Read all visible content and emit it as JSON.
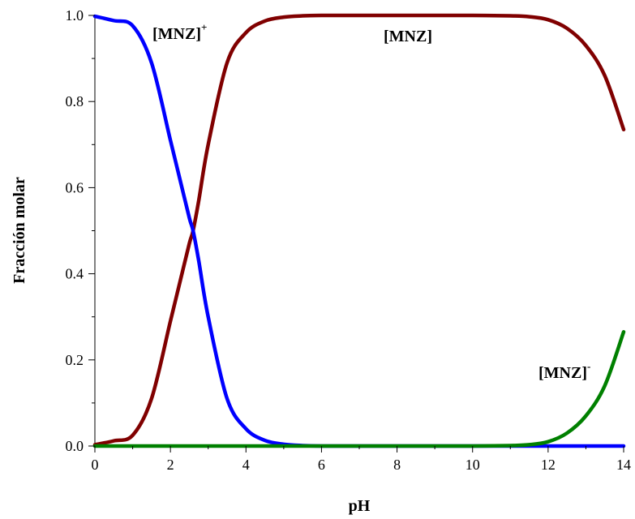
{
  "chart_data": {
    "type": "line",
    "xlabel": "pH",
    "ylabel": "Fracción molar",
    "xlim": [
      0,
      14
    ],
    "ylim": [
      0,
      1.0
    ],
    "x_ticks": [
      "0",
      "2",
      "4",
      "6",
      "8",
      "10",
      "12",
      "14"
    ],
    "y_ticks": [
      "0.0",
      "0.2",
      "0.4",
      "0.6",
      "0.8",
      "1.0"
    ],
    "grid": false,
    "legend": "none",
    "annotations": [
      {
        "base": "[MNZ]",
        "sup": "+",
        "series": "cation"
      },
      {
        "base": "[MNZ]",
        "sup": "",
        "series": "neutral"
      },
      {
        "base": "[MNZ]",
        "sup": "-",
        "series": "anion"
      }
    ],
    "x": [
      0,
      0.5,
      1,
      1.5,
      2,
      2.25,
      2.5,
      2.6,
      2.75,
      3,
      3.5,
      4,
      4.5,
      5,
      5.5,
      6,
      7,
      8,
      9,
      10,
      11,
      11.5,
      12,
      12.5,
      13,
      13.5,
      14
    ],
    "series": [
      {
        "id": "cation",
        "color": "#0000ff",
        "values": [
          0.998,
          0.988,
          0.976,
          0.89,
          0.71,
          0.62,
          0.53,
          0.5,
          0.43,
          0.3,
          0.11,
          0.04,
          0.013,
          0.004,
          0.001,
          0.0,
          0.0,
          0.0,
          0.0,
          0.0,
          0.0,
          0.0,
          0.0,
          0.0,
          0.0,
          0.0,
          0.0
        ]
      },
      {
        "id": "neutral",
        "color": "#800000",
        "values": [
          0.003,
          0.012,
          0.025,
          0.11,
          0.29,
          0.38,
          0.47,
          0.5,
          0.57,
          0.7,
          0.89,
          0.96,
          0.987,
          0.996,
          0.999,
          1.0,
          1.0,
          1.0,
          1.0,
          1.0,
          0.999,
          0.997,
          0.99,
          0.97,
          0.93,
          0.86,
          0.735
        ]
      },
      {
        "id": "anion",
        "color": "#008000",
        "values": [
          0.0,
          0.0,
          0.0,
          0.0,
          0.0,
          0.0,
          0.0,
          0.0,
          0.0,
          0.0,
          0.0,
          0.0,
          0.0,
          0.0,
          0.0,
          0.0,
          0.0,
          0.0,
          0.0,
          0.0,
          0.001,
          0.003,
          0.01,
          0.03,
          0.07,
          0.14,
          0.265
        ]
      }
    ]
  }
}
